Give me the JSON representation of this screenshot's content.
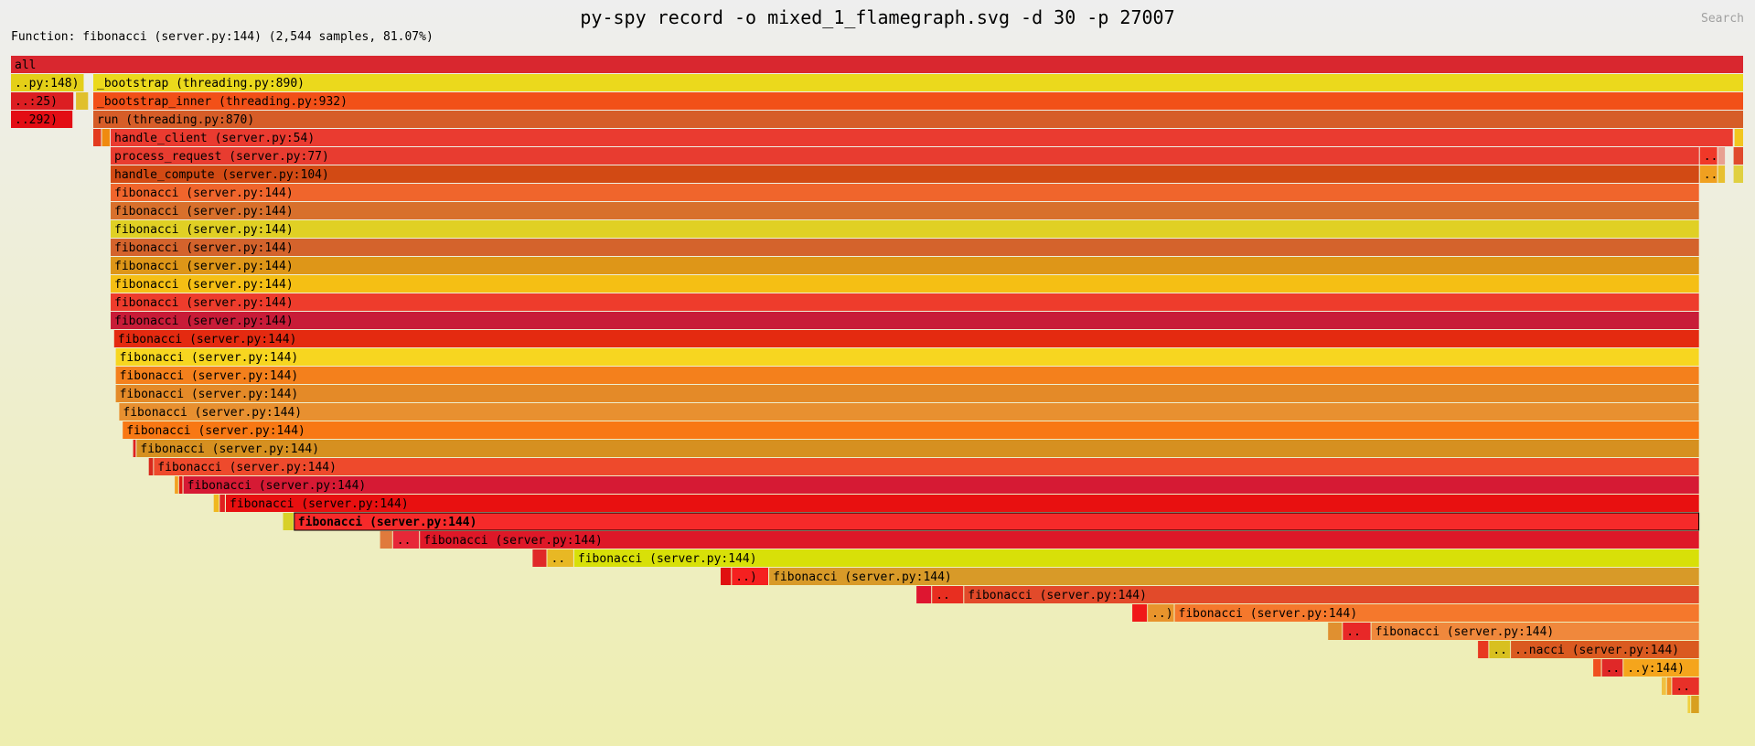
{
  "header": {
    "title": "py-spy record -o mixed_1_flamegraph.svg -d 30 -p 27007",
    "details": "Function: fibonacci (server.py:144) (2,544 samples, 81.07%)",
    "search_label": "Search"
  },
  "colors": {
    "background_top": "#eeeeee",
    "background_bottom": "#eeeeb0",
    "frame_border": "#ffffff",
    "text": "#000000",
    "selected_outline": "#000000"
  },
  "chart_data": {
    "type": "flamegraph",
    "title": "py-spy record -o mixed_1_flamegraph.svg -d 30 -p 27007",
    "unit": "samples",
    "x_range": [
      0,
      1
    ],
    "selected": {
      "function": "fibonacci (server.py:144)",
      "samples": 2544,
      "percent": 81.07
    },
    "frames": [
      {
        "depth": 0,
        "start": 0.0,
        "width": 1.0,
        "label": "all",
        "color": "#d9272f"
      },
      {
        "depth": 1,
        "start": 0.0,
        "width": 0.0425,
        "label": "..py:148)",
        "color": "#e4cf18"
      },
      {
        "depth": 1,
        "start": 0.0475,
        "width": 0.9525,
        "label": "_bootstrap (threading.py:890)",
        "color": "#ebd91c"
      },
      {
        "depth": 2,
        "start": 0.0,
        "width": 0.0365,
        "label": "..:25)",
        "color": "#dc1e22"
      },
      {
        "depth": 2,
        "start": 0.0375,
        "width": 0.0075,
        "label": "",
        "color": "#e0c02c"
      },
      {
        "depth": 2,
        "start": 0.0475,
        "width": 0.9525,
        "label": "_bootstrap_inner (threading.py:932)",
        "color": "#f25018"
      },
      {
        "depth": 3,
        "start": 0.0,
        "width": 0.036,
        "label": "..292)",
        "color": "#e30d14"
      },
      {
        "depth": 3,
        "start": 0.0475,
        "width": 0.9525,
        "label": "run (threading.py:870)",
        "color": "#d65d28"
      },
      {
        "depth": 4,
        "start": 0.0475,
        "width": 0.005,
        "label": "",
        "color": "#e33b1f"
      },
      {
        "depth": 4,
        "start": 0.0525,
        "width": 0.005,
        "label": "",
        "color": "#f08a10"
      },
      {
        "depth": 4,
        "start": 0.0575,
        "width": 0.9365,
        "label": "handle_client (server.py:54)",
        "color": "#ea3b30"
      },
      {
        "depth": 4,
        "start": 0.9945,
        "width": 0.0055,
        "label": "",
        "color": "#f2c61e"
      },
      {
        "depth": 5,
        "start": 0.0575,
        "width": 0.917,
        "label": "process_request (server.py:77)",
        "color": "#e83c30"
      },
      {
        "depth": 5,
        "start": 0.9745,
        "width": 0.0105,
        "label": "..",
        "color": "#f03828"
      },
      {
        "depth": 5,
        "start": 0.985,
        "width": 0.0045,
        "label": "",
        "color": "#e8a090"
      },
      {
        "depth": 5,
        "start": 0.994,
        "width": 0.006,
        "label": "",
        "color": "#e04a2c"
      },
      {
        "depth": 6,
        "start": 0.0575,
        "width": 0.917,
        "label": "handle_compute (server.py:104)",
        "color": "#d24a14"
      },
      {
        "depth": 6,
        "start": 0.9745,
        "width": 0.0105,
        "label": "..",
        "color": "#f0a020"
      },
      {
        "depth": 6,
        "start": 0.985,
        "width": 0.0045,
        "label": "",
        "color": "#e8c030"
      },
      {
        "depth": 6,
        "start": 0.994,
        "width": 0.006,
        "label": "",
        "color": "#e0d040"
      },
      {
        "depth": 7,
        "start": 0.0575,
        "width": 0.917,
        "label": "fibonacci (server.py:144)",
        "color": "#f0652c"
      },
      {
        "depth": 8,
        "start": 0.0575,
        "width": 0.917,
        "label": "fibonacci (server.py:144)",
        "color": "#d8702c"
      },
      {
        "depth": 9,
        "start": 0.0575,
        "width": 0.917,
        "label": "fibonacci (server.py:144)",
        "color": "#e0d024"
      },
      {
        "depth": 10,
        "start": 0.0575,
        "width": 0.917,
        "label": "fibonacci (server.py:144)",
        "color": "#d4632c"
      },
      {
        "depth": 11,
        "start": 0.0575,
        "width": 0.917,
        "label": "fibonacci (server.py:144)",
        "color": "#de9618"
      },
      {
        "depth": 12,
        "start": 0.0575,
        "width": 0.917,
        "label": "fibonacci (server.py:144)",
        "color": "#f5bf14"
      },
      {
        "depth": 13,
        "start": 0.0575,
        "width": 0.917,
        "label": "fibonacci (server.py:144)",
        "color": "#ee3c2c"
      },
      {
        "depth": 14,
        "start": 0.0575,
        "width": 0.917,
        "label": "fibonacci (server.py:144)",
        "color": "#c81c38"
      },
      {
        "depth": 15,
        "start": 0.0595,
        "width": 0.915,
        "label": "fibonacci (server.py:144)",
        "color": "#e42a10"
      },
      {
        "depth": 16,
        "start": 0.0605,
        "width": 0.914,
        "label": "fibonacci (server.py:144)",
        "color": "#f7d620"
      },
      {
        "depth": 17,
        "start": 0.0605,
        "width": 0.914,
        "label": "fibonacci (server.py:144)",
        "color": "#f4801c"
      },
      {
        "depth": 18,
        "start": 0.0605,
        "width": 0.914,
        "label": "fibonacci (server.py:144)",
        "color": "#e48a28"
      },
      {
        "depth": 19,
        "start": 0.0625,
        "width": 0.912,
        "label": "fibonacci (server.py:144)",
        "color": "#e89030"
      },
      {
        "depth": 20,
        "start": 0.0645,
        "width": 0.91,
        "label": "fibonacci (server.py:144)",
        "color": "#f87814"
      },
      {
        "depth": 21,
        "start": 0.0705,
        "width": 0.002,
        "label": "",
        "color": "#e02020"
      },
      {
        "depth": 21,
        "start": 0.0725,
        "width": 0.902,
        "label": "fibonacci (server.py:144)",
        "color": "#d69020"
      },
      {
        "depth": 22,
        "start": 0.0795,
        "width": 0.003,
        "label": "",
        "color": "#d8281c"
      },
      {
        "depth": 22,
        "start": 0.0825,
        "width": 0.892,
        "label": "fibonacci (server.py:144)",
        "color": "#ee4a2c"
      },
      {
        "depth": 23,
        "start": 0.0945,
        "width": 0.0025,
        "label": "",
        "color": "#f2a020"
      },
      {
        "depth": 23,
        "start": 0.097,
        "width": 0.0025,
        "label": "",
        "color": "#e01810"
      },
      {
        "depth": 23,
        "start": 0.0995,
        "width": 0.875,
        "label": "fibonacci (server.py:144)",
        "color": "#d61a34"
      },
      {
        "depth": 24,
        "start": 0.117,
        "width": 0.0035,
        "label": "",
        "color": "#f0b820"
      },
      {
        "depth": 24,
        "start": 0.1205,
        "width": 0.0035,
        "label": "",
        "color": "#e02020"
      },
      {
        "depth": 24,
        "start": 0.124,
        "width": 0.8505,
        "label": "fibonacci (server.py:144)",
        "color": "#e81010"
      },
      {
        "depth": 25,
        "start": 0.157,
        "width": 0.0065,
        "label": "",
        "color": "#d8d028"
      },
      {
        "depth": 25,
        "start": 0.1635,
        "width": 0.811,
        "label": "fibonacci (server.py:144)",
        "color": "#f62a2a",
        "selected": true
      },
      {
        "depth": 26,
        "start": 0.213,
        "width": 0.0075,
        "label": "",
        "color": "#e07a3c"
      },
      {
        "depth": 26,
        "start": 0.2205,
        "width": 0.0155,
        "label": "..",
        "color": "#e72838"
      },
      {
        "depth": 26,
        "start": 0.236,
        "width": 0.7385,
        "label": "fibonacci (server.py:144)",
        "color": "#de1828"
      },
      {
        "depth": 27,
        "start": 0.301,
        "width": 0.0085,
        "label": "",
        "color": "#e02828"
      },
      {
        "depth": 27,
        "start": 0.3095,
        "width": 0.0155,
        "label": "..",
        "color": "#e8b824"
      },
      {
        "depth": 27,
        "start": 0.325,
        "width": 0.6495,
        "label": "fibonacci (server.py:144)",
        "color": "#d8e008"
      },
      {
        "depth": 28,
        "start": 0.4095,
        "width": 0.0065,
        "label": "",
        "color": "#e01010"
      },
      {
        "depth": 28,
        "start": 0.416,
        "width": 0.0215,
        "label": "..)",
        "color": "#f52020"
      },
      {
        "depth": 28,
        "start": 0.4375,
        "width": 0.537,
        "label": "fibonacci (server.py:144)",
        "color": "#d89a28"
      },
      {
        "depth": 29,
        "start": 0.5225,
        "width": 0.009,
        "label": "",
        "color": "#de1630"
      },
      {
        "depth": 29,
        "start": 0.5315,
        "width": 0.0185,
        "label": "..",
        "color": "#e82e20"
      },
      {
        "depth": 29,
        "start": 0.55,
        "width": 0.4245,
        "label": "fibonacci (server.py:144)",
        "color": "#e24a2a"
      },
      {
        "depth": 30,
        "start": 0.647,
        "width": 0.009,
        "label": "",
        "color": "#f01818"
      },
      {
        "depth": 30,
        "start": 0.656,
        "width": 0.0155,
        "label": "..)",
        "color": "#e8942c"
      },
      {
        "depth": 30,
        "start": 0.6715,
        "width": 0.303,
        "label": "fibonacci (server.py:144)",
        "color": "#f5782c"
      },
      {
        "depth": 31,
        "start": 0.76,
        "width": 0.0085,
        "label": "",
        "color": "#e09030"
      },
      {
        "depth": 31,
        "start": 0.7685,
        "width": 0.0165,
        "label": "..",
        "color": "#e82828"
      },
      {
        "depth": 31,
        "start": 0.785,
        "width": 0.1895,
        "label": "fibonacci (server.py:144)",
        "color": "#f0883c"
      },
      {
        "depth": 32,
        "start": 0.8465,
        "width": 0.0065,
        "label": "",
        "color": "#e83820"
      },
      {
        "depth": 32,
        "start": 0.853,
        "width": 0.0125,
        "label": "..",
        "color": "#d8c020"
      },
      {
        "depth": 32,
        "start": 0.8655,
        "width": 0.109,
        "label": "..nacci (server.py:144)",
        "color": "#da5a20"
      },
      {
        "depth": 33,
        "start": 0.913,
        "width": 0.005,
        "label": "",
        "color": "#f05020"
      },
      {
        "depth": 33,
        "start": 0.918,
        "width": 0.0125,
        "label": "..",
        "color": "#e02828"
      },
      {
        "depth": 33,
        "start": 0.9305,
        "width": 0.044,
        "label": "..y:144)",
        "color": "#f5a51c"
      },
      {
        "depth": 34,
        "start": 0.9525,
        "width": 0.003,
        "label": "",
        "color": "#f0c040"
      },
      {
        "depth": 34,
        "start": 0.9555,
        "width": 0.003,
        "label": "",
        "color": "#f09020"
      },
      {
        "depth": 34,
        "start": 0.9585,
        "width": 0.016,
        "label": "..",
        "color": "#e83028"
      },
      {
        "depth": 35,
        "start": 0.9675,
        "width": 0.002,
        "label": "",
        "color": "#f0d040"
      },
      {
        "depth": 35,
        "start": 0.9695,
        "width": 0.005,
        "label": "",
        "color": "#d8a020"
      }
    ]
  }
}
